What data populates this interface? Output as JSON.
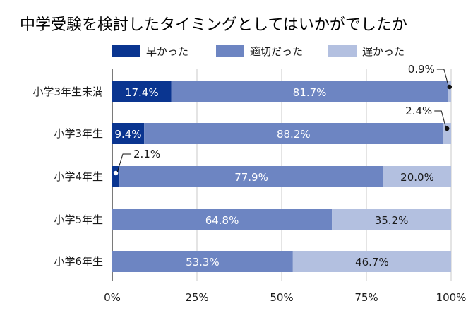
{
  "chart_data": {
    "type": "bar",
    "orientation": "horizontal",
    "stacked": true,
    "title": "中学受験を検討したタイミングとしてはいかがでしたか",
    "categories": [
      "小学3年生未満",
      "小学3年生",
      "小学4年生",
      "小学5年生",
      "小学6年生"
    ],
    "series": [
      {
        "name": "早かった",
        "color": "#0a3590",
        "values": [
          17.4,
          9.4,
          2.1,
          0,
          0
        ],
        "labels": [
          "17.4%",
          "9.4%",
          "2.1%",
          "",
          ""
        ]
      },
      {
        "name": "適切だった",
        "color": "#6d85c2",
        "values": [
          81.7,
          88.2,
          77.9,
          64.8,
          53.3
        ],
        "labels": [
          "81.7%",
          "88.2%",
          "77.9%",
          "64.8%",
          "53.3%"
        ]
      },
      {
        "name": "遅かった",
        "color": "#b3c0e0",
        "values": [
          0.9,
          2.4,
          20.0,
          35.2,
          46.7
        ],
        "labels": [
          "0.9%",
          "2.4%",
          "20.0%",
          "35.2%",
          "46.7%"
        ]
      }
    ],
    "xlim": [
      0,
      100
    ],
    "x_ticks": [
      "0%",
      "25%",
      "50%",
      "75%",
      "100%"
    ],
    "grid": true,
    "legend_position": "top"
  }
}
